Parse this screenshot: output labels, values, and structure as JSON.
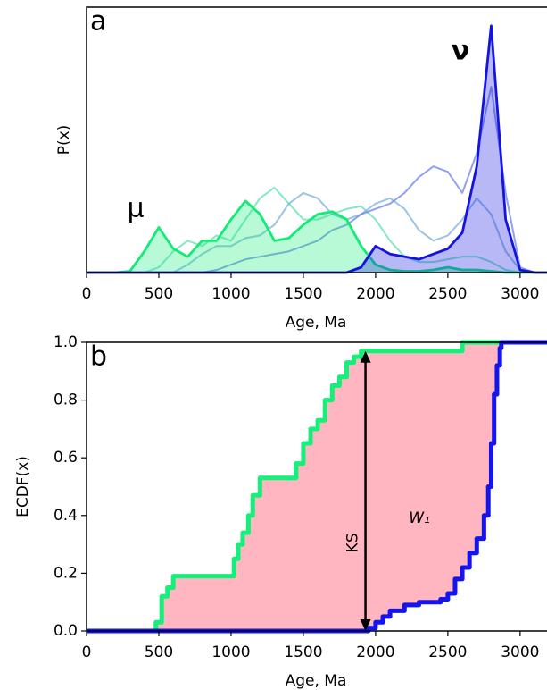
{
  "chart_data": [
    {
      "type": "line",
      "panel_label": "a",
      "ylabel": "P(x)",
      "xlabel": "Age, Ma",
      "xlim": [
        0,
        3180
      ],
      "xticks": [
        0,
        500,
        1000,
        1500,
        2000,
        2500,
        3000
      ],
      "ylim": [
        0,
        1
      ],
      "x": [
        0,
        100,
        200,
        300,
        400,
        500,
        600,
        700,
        800,
        900,
        1000,
        1100,
        1200,
        1300,
        1400,
        1500,
        1600,
        1700,
        1800,
        1900,
        2000,
        2100,
        2200,
        2300,
        2400,
        2500,
        2600,
        2700,
        2800,
        2900,
        3000,
        3100,
        3200
      ],
      "series": [
        {
          "color": "#5ee0b4",
          "values": [
            0,
            0,
            0,
            0,
            0,
            0.02,
            0.08,
            0.12,
            0.1,
            0.14,
            0.12,
            0.2,
            0.28,
            0.32,
            0.26,
            0.2,
            0.2,
            0.22,
            0.24,
            0.25,
            0.2,
            0.12,
            0.06,
            0.04,
            0.04,
            0.05,
            0.06,
            0.06,
            0.04,
            0.01,
            0,
            0,
            0
          ]
        },
        {
          "color": "#7ab0dc",
          "values": [
            0,
            0,
            0,
            0,
            0,
            0,
            0,
            0.03,
            0.07,
            0.1,
            0.1,
            0.13,
            0.14,
            0.18,
            0.26,
            0.3,
            0.28,
            0.22,
            0.2,
            0.22,
            0.26,
            0.28,
            0.24,
            0.16,
            0.12,
            0.14,
            0.2,
            0.28,
            0.22,
            0.08,
            0.01,
            0,
            0
          ]
        },
        {
          "color": "#6f80e8",
          "values": [
            0,
            0,
            0,
            0,
            0,
            0,
            0,
            0,
            0,
            0.01,
            0.03,
            0.05,
            0.06,
            0.07,
            0.08,
            0.1,
            0.12,
            0.16,
            0.18,
            0.22,
            0.24,
            0.26,
            0.3,
            0.36,
            0.4,
            0.38,
            0.3,
            0.45,
            0.7,
            0.3,
            0.02,
            0,
            0
          ]
        },
        {
          "name": "μ",
          "color": "#14ea78",
          "fill": true,
          "values": [
            0,
            0,
            0,
            0.005,
            0.08,
            0.17,
            0.09,
            0.06,
            0.12,
            0.12,
            0.2,
            0.27,
            0.22,
            0.12,
            0.13,
            0.18,
            0.22,
            0.23,
            0.2,
            0.1,
            0.03,
            0.01,
            0.005,
            0.005,
            0.01,
            0.02,
            0.01,
            0.01,
            0.005,
            0,
            0,
            0,
            0
          ]
        },
        {
          "name": "ν",
          "color": "#1414e0",
          "fill": true,
          "values": [
            0,
            0,
            0,
            0,
            0,
            0,
            0,
            0,
            0,
            0,
            0,
            0,
            0,
            0,
            0,
            0,
            0,
            0,
            0,
            0.02,
            0.1,
            0.07,
            0.06,
            0.05,
            0.07,
            0.09,
            0.15,
            0.4,
            0.93,
            0.2,
            0.01,
            0,
            0
          ]
        }
      ]
    },
    {
      "type": "step",
      "panel_label": "b",
      "ylabel": "ECDF(x)",
      "xlabel": "Age, Ma",
      "xlim": [
        0,
        3180
      ],
      "xticks": [
        0,
        500,
        1000,
        1500,
        2000,
        2500,
        3000
      ],
      "ylim": [
        0,
        1
      ],
      "yticks": [
        {
          "value": 0,
          "label": "0.0"
        },
        0.2,
        0.4,
        0.6,
        0.8,
        {
          "value": 1,
          "label": "1.0"
        }
      ],
      "fill_color": "#ffb6c1",
      "series": [
        {
          "color": "#14f07a",
          "x": [
            0,
            450,
            480,
            520,
            560,
            600,
            1000,
            1020,
            1050,
            1080,
            1120,
            1150,
            1200,
            1400,
            1450,
            1500,
            1550,
            1600,
            1650,
            1700,
            1750,
            1800,
            1850,
            1900,
            2000,
            2500,
            2600,
            3200
          ],
          "values": [
            0,
            0,
            0.03,
            0.12,
            0.15,
            0.19,
            0.19,
            0.25,
            0.3,
            0.34,
            0.4,
            0.47,
            0.53,
            0.53,
            0.58,
            0.65,
            0.7,
            0.73,
            0.8,
            0.85,
            0.88,
            0.93,
            0.95,
            0.97,
            0.97,
            0.97,
            1,
            1
          ]
        },
        {
          "color": "#1414ee",
          "x": [
            0,
            1920,
            1950,
            2000,
            2050,
            2100,
            2200,
            2300,
            2450,
            2500,
            2550,
            2600,
            2650,
            2700,
            2750,
            2780,
            2800,
            2820,
            2840,
            2860,
            2870,
            3200
          ],
          "values": [
            0,
            0,
            0.01,
            0.03,
            0.05,
            0.07,
            0.09,
            0.1,
            0.11,
            0.13,
            0.18,
            0.22,
            0.27,
            0.32,
            0.4,
            0.5,
            0.65,
            0.82,
            0.92,
            0.98,
            1,
            1
          ]
        }
      ],
      "ks_label": "KS",
      "ks_x": 1930,
      "ks_range": [
        0,
        0.97
      ],
      "w_label": "W₁"
    }
  ]
}
